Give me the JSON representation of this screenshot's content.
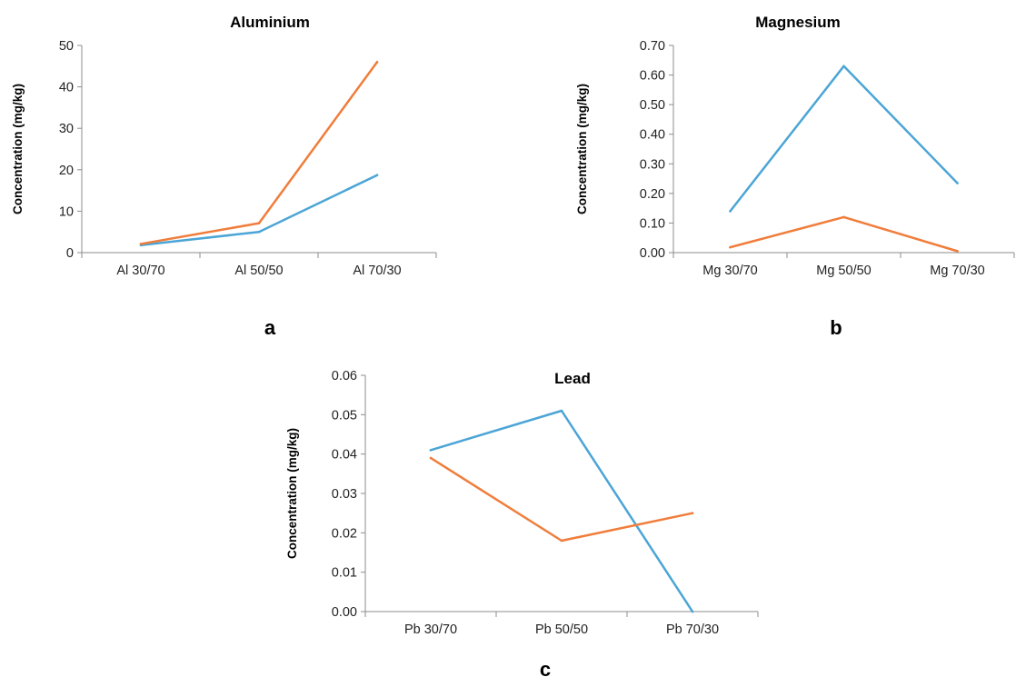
{
  "colors": {
    "series_1": "#4ba5d6",
    "series_2": "#f07d3b",
    "axis": "#8c8c8c"
  },
  "chart_data": [
    {
      "type": "line",
      "panel_label": "a",
      "title": "Aluminium",
      "xlabel": "",
      "ylabel": "Concentration (mg/kg)",
      "categories": [
        "Al 30/70",
        "Al 50/50",
        "Al 70/30"
      ],
      "ylim": [
        0,
        50
      ],
      "yticks": [
        0,
        10,
        20,
        30,
        40,
        50
      ],
      "ytick_labels": [
        "0",
        "10",
        "20",
        "30",
        "40",
        "50"
      ],
      "grid": false,
      "legend": "none",
      "series": [
        {
          "color": "#4ba5d6",
          "values": [
            1.8,
            5.0,
            18.7
          ]
        },
        {
          "color": "#f07d3b",
          "values": [
            2.1,
            7.1,
            46.0
          ]
        }
      ]
    },
    {
      "type": "line",
      "panel_label": "b",
      "title": "Magnesium",
      "xlabel": "",
      "ylabel": "Concentration (mg/kg)",
      "categories": [
        "Mg 30/70",
        "Mg 50/50",
        "Mg 70/30"
      ],
      "ylim": [
        0,
        0.7
      ],
      "yticks": [
        0,
        0.1,
        0.2,
        0.3,
        0.4,
        0.5,
        0.6,
        0.7
      ],
      "ytick_labels": [
        "0.00",
        "0.10",
        "0.20",
        "0.30",
        "0.40",
        "0.50",
        "0.60",
        "0.70"
      ],
      "grid": false,
      "legend": "none",
      "series": [
        {
          "color": "#4ba5d6",
          "values": [
            0.14,
            0.63,
            0.235
          ]
        },
        {
          "color": "#f07d3b",
          "values": [
            0.018,
            0.12,
            0.005
          ]
        }
      ]
    },
    {
      "type": "line",
      "panel_label": "c",
      "title": "Lead",
      "xlabel": "",
      "ylabel": "Concentration (mg/kg)",
      "categories": [
        "Pb 30/70",
        "Pb 50/50",
        "Pb 70/30"
      ],
      "ylim": [
        0,
        0.06
      ],
      "yticks": [
        0,
        0.01,
        0.02,
        0.03,
        0.04,
        0.05,
        0.06
      ],
      "ytick_labels": [
        "0.00",
        "0.01",
        "0.02",
        "0.03",
        "0.04",
        "0.05",
        "0.06"
      ],
      "grid": false,
      "legend": "none",
      "series": [
        {
          "color": "#4ba5d6",
          "values": [
            0.041,
            0.051,
            0.0
          ]
        },
        {
          "color": "#f07d3b",
          "values": [
            0.039,
            0.018,
            0.025
          ]
        }
      ]
    }
  ]
}
